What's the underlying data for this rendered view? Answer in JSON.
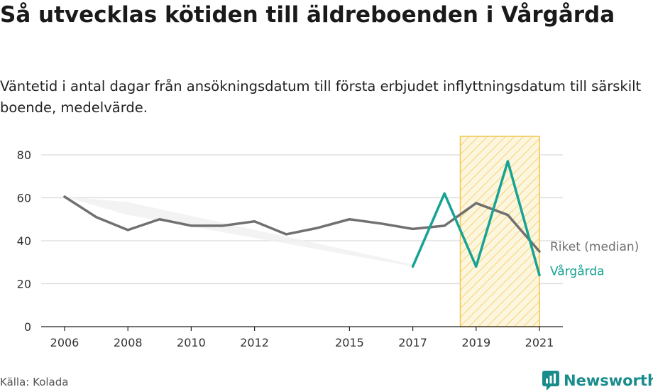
{
  "title": "Så utvecklas kötiden till äldreboenden i Vårgårda",
  "subtitle": "Väntetid i antal dagar från ansökningsdatum till första erbjudet inflyttningsdatum till särskilt boende, medelvärde.",
  "source": "Källa: Kolada",
  "brand": {
    "name": "Newsworthy",
    "icon": "newsworthy-logo-icon"
  },
  "colors": {
    "riket": "#707070",
    "vargarda": "#16a394",
    "highlight": "#f3c44a",
    "band": "#efefef",
    "grid": "#d9d9d9"
  },
  "chart_data": {
    "type": "line",
    "xticks": [
      2006,
      2008,
      2010,
      2012,
      2015,
      2017,
      2019,
      2021
    ],
    "yticks": [
      0,
      20,
      40,
      60,
      80
    ],
    "xlim": [
      2006,
      2021
    ],
    "ylim": [
      0,
      80
    ],
    "grid": true,
    "highlight_range": [
      2018.5,
      2021
    ],
    "series": [
      {
        "name": "Riket (median)",
        "color": "#707070",
        "x": [
          2006,
          2007,
          2008,
          2009,
          2010,
          2011,
          2012,
          2013,
          2014,
          2015,
          2016,
          2017,
          2018,
          2019,
          2020,
          2021
        ],
        "y": [
          60.5,
          51,
          45,
          50,
          47,
          47,
          49,
          43,
          46,
          50,
          48,
          45.5,
          47,
          57.5,
          52,
          35
        ]
      },
      {
        "name": "Vårgårda",
        "color": "#16a394",
        "x": [
          2017,
          2018,
          2019,
          2020,
          2021
        ],
        "y": [
          28,
          62,
          28,
          77,
          24
        ]
      }
    ],
    "band": {
      "x": [
        2006,
        2008,
        2017
      ],
      "upper": [
        60.5,
        58,
        29
      ],
      "lower": [
        60.5,
        52,
        28
      ]
    }
  }
}
